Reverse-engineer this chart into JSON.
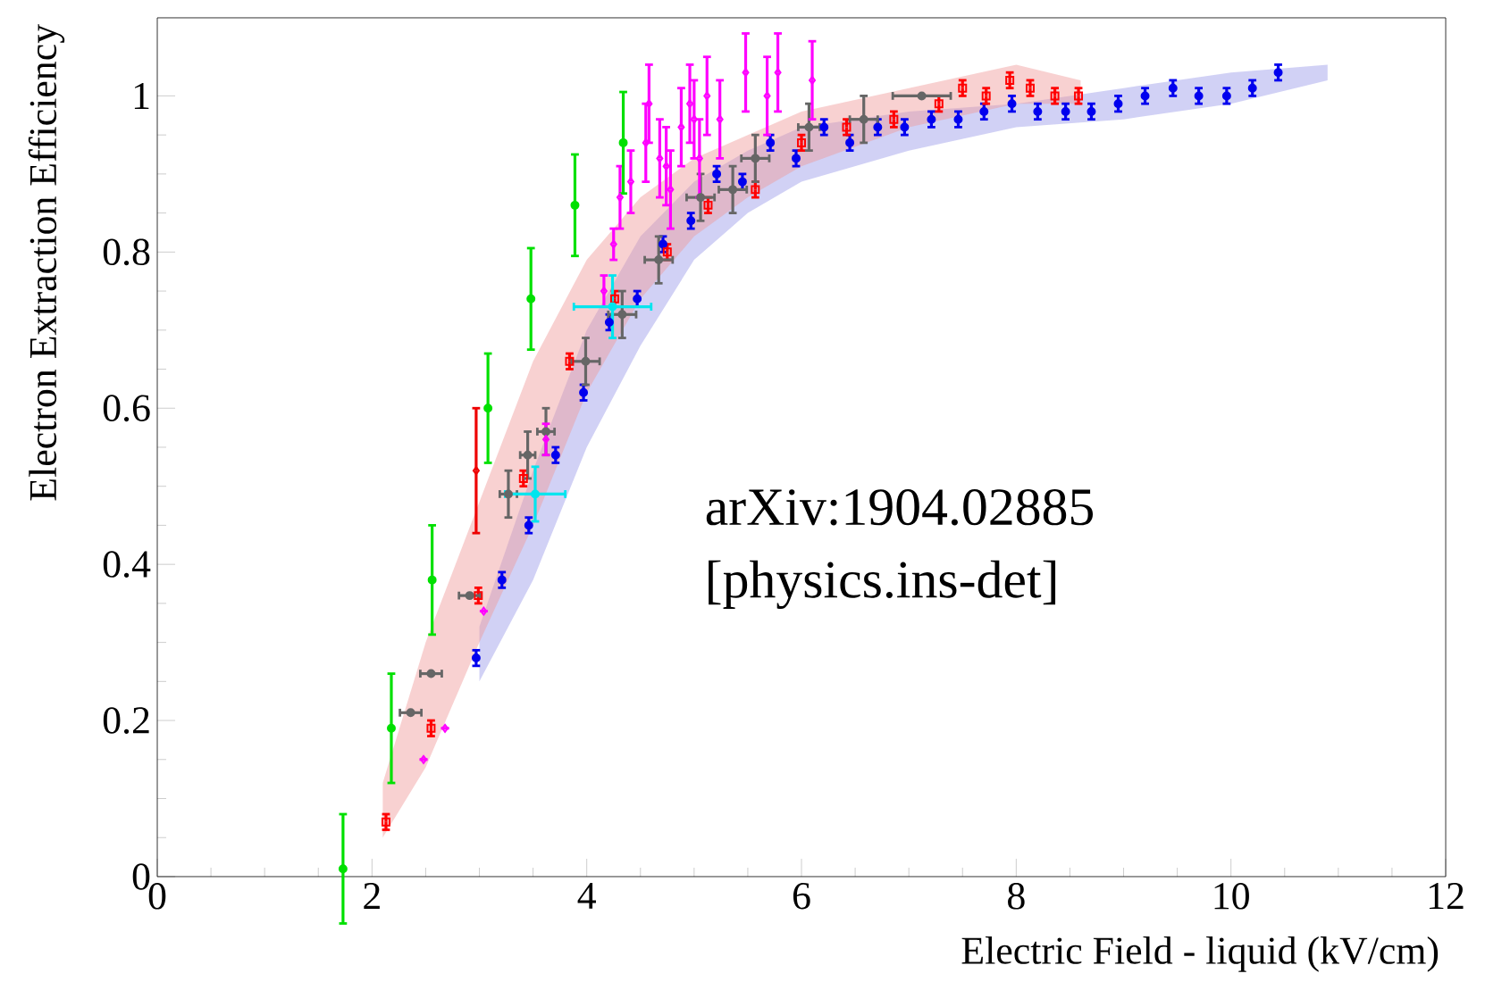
{
  "chart_data": {
    "type": "scatter",
    "xlabel": "Electric Field - liquid (kV/cm)",
    "ylabel": "Electron Extraction Efficiency",
    "xlim": [
      0,
      12
    ],
    "ylim": [
      0,
      1.1
    ],
    "xticks": [
      0,
      2,
      4,
      6,
      8,
      10,
      12
    ],
    "yticks": [
      0,
      0.2,
      0.4,
      0.6,
      0.8,
      1
    ],
    "grid": false,
    "annotations": [
      "arXiv:1904.02885",
      "[physics.ins-det]"
    ],
    "series": [
      {
        "type": "line",
        "color": "#9a9ae8",
        "x": [
          3.0,
          3.5,
          4.0,
          4.5,
          5.0,
          5.5,
          6.0,
          7.0,
          8.0,
          9.0,
          10.0,
          10.9
        ],
        "values": [
          null,
          null,
          null,
          null,
          null,
          null,
          null,
          null,
          null,
          null,
          null,
          null
        ],
        "lower": [
          0.25,
          0.38,
          0.55,
          0.68,
          0.79,
          0.85,
          0.89,
          0.93,
          0.96,
          0.97,
          0.99,
          1.02
        ],
        "upper": [
          0.32,
          0.52,
          0.7,
          0.82,
          0.89,
          0.93,
          0.96,
          0.98,
          0.99,
          1.01,
          1.03,
          1.04
        ]
      },
      {
        "type": "line",
        "color": "#f09a9a",
        "x": [
          2.1,
          2.5,
          3.0,
          3.5,
          4.0,
          4.5,
          5.0,
          5.5,
          6.0,
          7.0,
          8.0,
          8.6
        ],
        "values": [
          null,
          null,
          null,
          null,
          null,
          null,
          null,
          null,
          null,
          null,
          null,
          null
        ],
        "lower": [
          0.05,
          0.14,
          0.3,
          0.45,
          0.62,
          0.74,
          0.82,
          0.87,
          0.91,
          0.96,
          0.99,
          0.99
        ],
        "upper": [
          0.12,
          0.3,
          0.48,
          0.66,
          0.79,
          0.87,
          0.92,
          0.95,
          0.98,
          1.01,
          1.04,
          1.02
        ]
      },
      {
        "color": "#0000ee",
        "marker": "circle",
        "x": [
          2.97,
          3.21,
          3.46,
          3.71,
          3.97,
          4.21,
          4.47,
          4.71,
          4.97,
          5.21,
          5.45,
          5.71,
          5.95,
          6.21,
          6.45,
          6.71,
          6.96,
          7.21,
          7.46,
          7.7,
          7.96,
          8.2,
          8.46,
          8.7,
          8.95,
          9.2,
          9.46,
          9.7,
          9.96,
          10.2,
          10.44
        ],
        "values": [
          0.28,
          0.38,
          0.45,
          0.54,
          0.62,
          0.71,
          0.74,
          0.81,
          0.84,
          0.9,
          0.89,
          0.94,
          0.92,
          0.96,
          0.94,
          0.96,
          0.96,
          0.97,
          0.97,
          0.98,
          0.99,
          0.98,
          0.98,
          0.98,
          0.99,
          1.0,
          1.01,
          1.0,
          1.0,
          1.01,
          1.03
        ],
        "errors": [
          0.01,
          0.01,
          0.01,
          0.01,
          0.01,
          0.01,
          0.01,
          0.01,
          0.01,
          0.01,
          0.01,
          0.01,
          0.01,
          0.01,
          0.01,
          0.01,
          0.01,
          0.01,
          0.01,
          0.01,
          0.01,
          0.01,
          0.01,
          0.01,
          0.01,
          0.01,
          0.01,
          0.01,
          0.01,
          0.01,
          0.01
        ]
      },
      {
        "color": "#ff0000",
        "marker": "square",
        "x": [
          2.13,
          2.55,
          2.99,
          3.41,
          3.84,
          4.26,
          4.75,
          5.13,
          5.57,
          6.0,
          6.42,
          6.86,
          7.28,
          7.5,
          7.72,
          7.94,
          8.13,
          8.36,
          8.58
        ],
        "values": [
          0.07,
          0.19,
          0.36,
          0.51,
          0.66,
          0.74,
          0.8,
          0.86,
          0.88,
          0.94,
          0.96,
          0.97,
          0.99,
          1.01,
          1.0,
          1.02,
          1.01,
          1.0,
          1.0
        ],
        "errors": [
          0.01,
          0.01,
          0.01,
          0.01,
          0.01,
          0.01,
          0.01,
          0.01,
          0.01,
          0.01,
          0.01,
          0.01,
          0.01,
          0.01,
          0.01,
          0.01,
          0.01,
          0.01,
          0.01
        ]
      },
      {
        "color": "#666666",
        "marker": "circle",
        "x": [
          2.36,
          2.55,
          2.91,
          3.27,
          3.45,
          3.62,
          3.99,
          4.33,
          4.67,
          5.06,
          5.36,
          5.57,
          6.07,
          6.58,
          7.12
        ],
        "values": [
          0.21,
          0.26,
          0.36,
          0.49,
          0.54,
          0.57,
          0.66,
          0.72,
          0.79,
          0.87,
          0.88,
          0.92,
          0.96,
          0.97,
          1.0
        ],
        "errors": [
          null,
          null,
          null,
          0.03,
          0.03,
          0.03,
          0.03,
          0.03,
          0.03,
          0.03,
          0.03,
          0.03,
          0.03,
          0.03,
          null
        ],
        "xerrors": [
          0.1,
          0.1,
          0.1,
          0.08,
          0.07,
          0.08,
          0.13,
          0.13,
          0.13,
          0.13,
          0.13,
          0.13,
          0.1,
          0.13,
          0.27
        ]
      },
      {
        "color": "#ff00ff",
        "marker": "diamond",
        "x": [
          2.48,
          2.68,
          3.04,
          3.62,
          4.16,
          4.25,
          4.31,
          4.41,
          4.58,
          4.55,
          4.68,
          4.74,
          4.78,
          4.88,
          4.96,
          5.0,
          5.05,
          5.12,
          5.24,
          5.48,
          5.68,
          5.78,
          6.1
        ],
        "values": [
          0.15,
          0.19,
          0.34,
          0.56,
          0.75,
          0.81,
          0.87,
          0.89,
          0.99,
          0.94,
          0.92,
          0.91,
          0.88,
          0.96,
          0.99,
          0.97,
          0.92,
          1.0,
          0.97,
          1.03,
          1.0,
          1.03,
          1.02
        ],
        "errors": [
          null,
          null,
          null,
          0.02,
          0.02,
          0.02,
          0.04,
          0.04,
          0.05,
          0.05,
          0.05,
          0.05,
          0.05,
          0.05,
          0.05,
          0.05,
          0.05,
          0.05,
          0.05,
          0.05,
          0.05,
          0.05,
          0.05
        ]
      },
      {
        "color": "#00e000",
        "marker": "circle",
        "x": [
          1.73,
          2.18,
          2.56,
          3.08,
          3.48,
          3.89,
          4.34
        ],
        "values": [
          0.01,
          0.19,
          0.38,
          0.6,
          0.74,
          0.86,
          0.94
        ],
        "errors": [
          0.07,
          0.07,
          0.07,
          0.07,
          0.065,
          0.065,
          0.065
        ]
      },
      {
        "color": "#00e5ee",
        "marker": "circle",
        "x": [
          3.52,
          4.24
        ],
        "values": [
          0.49,
          0.73
        ],
        "errors": [
          0.035,
          0.04
        ],
        "xerrors": [
          0.28,
          0.36
        ]
      },
      {
        "color": "#ee0000",
        "marker": "diamond",
        "x": [
          2.97
        ],
        "values": [
          0.52
        ],
        "errors": [
          0.08
        ]
      }
    ]
  }
}
